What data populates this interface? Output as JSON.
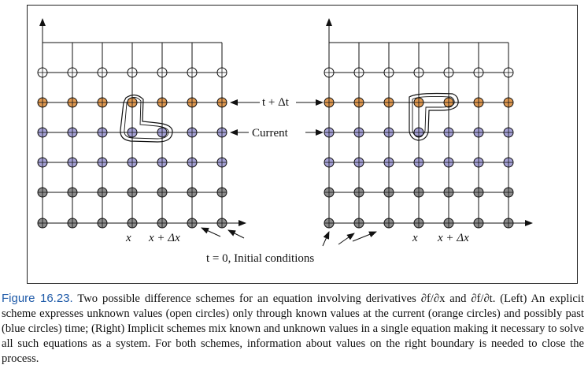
{
  "diagram": {
    "labels": {
      "t_dt": "t + Δt",
      "current": "Current",
      "x": "x",
      "x_dx": "x + Δx",
      "initial": "t = 0, Initial conditions"
    },
    "colors": {
      "orange": "#e09a52",
      "blue": "#a6a2d6",
      "gray": "#8e8e8e",
      "line": "#111111"
    }
  },
  "caption": {
    "label": "Figure 16.23.",
    "text": "Two possible difference schemes for an equation involving derivatives ∂f/∂x and ∂f/∂t. (Left) An explicit scheme expresses unknown values (open circles) only through known values at the current (orange circles) and possibly past (blue circles) time; (Right) Implicit schemes mix known and unknown values in a single equation making it necessary to solve all such equations as a system. For both schemes, information about values on the right boundary is needed to close the process."
  }
}
